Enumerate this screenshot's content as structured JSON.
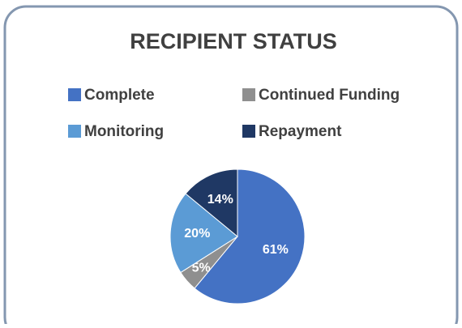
{
  "chart_data": {
    "type": "pie",
    "title": "RECIPIENT STATUS",
    "categories": [
      "Complete",
      "Continued Funding",
      "Monitoring",
      "Repayment"
    ],
    "values": [
      61,
      5,
      20,
      14
    ],
    "value_labels": [
      "61%",
      "5%",
      "20%",
      "14%"
    ],
    "colors": [
      "#4472c4",
      "#8f8f8f",
      "#5b9bd5",
      "#1f3864"
    ]
  }
}
